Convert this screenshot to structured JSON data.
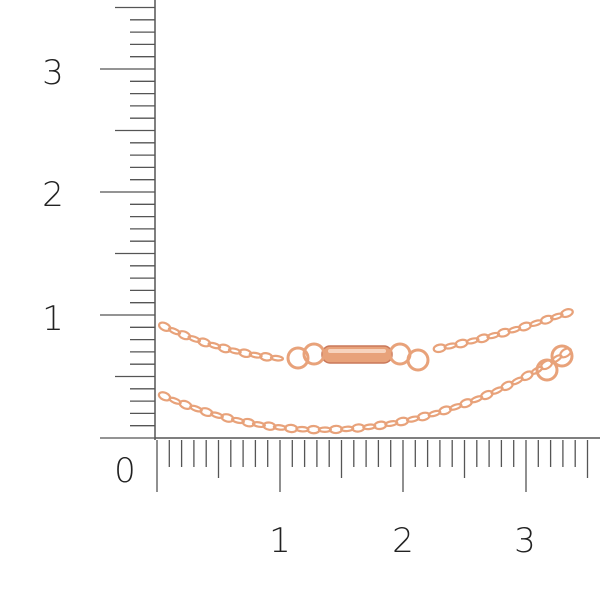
{
  "vertical_ruler": {
    "labels": [
      "0",
      "1",
      "2",
      "3"
    ]
  },
  "horizontal_ruler": {
    "labels": [
      "1",
      "2",
      "3"
    ]
  },
  "colors": {
    "ruler": "#555555",
    "gold": "#e8a27a",
    "gold_dark": "#c9785a",
    "gold_light": "#f7d3bd"
  }
}
